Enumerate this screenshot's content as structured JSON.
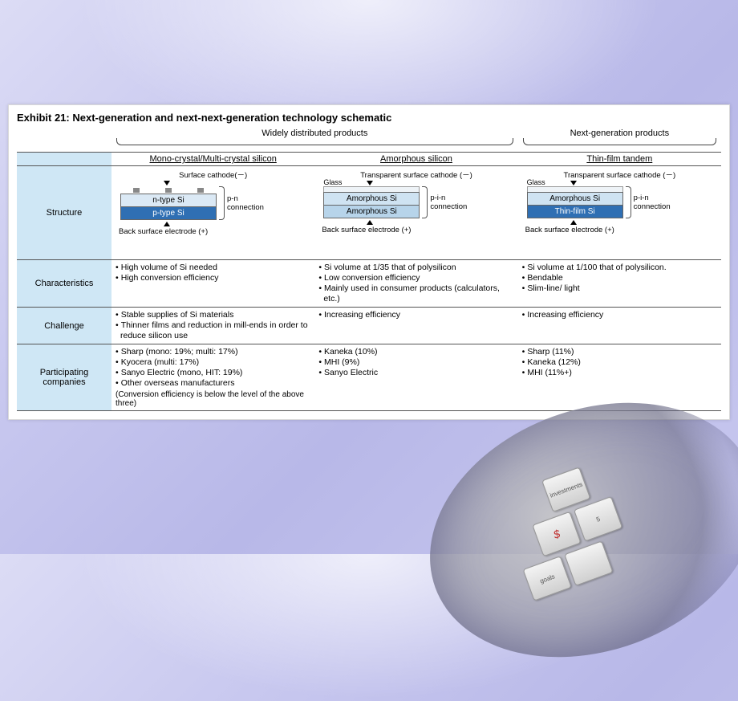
{
  "title": "Exhibit 21: Next-generation and next-next-generation technology schematic",
  "categories": {
    "wide": "Widely distributed products",
    "next": "Next-generation products"
  },
  "columns": [
    "Mono-crystal/Multi-crystal silicon",
    "Amorphous silicon",
    "Thin-film tandem"
  ],
  "row_labels": {
    "structure": "Structure",
    "characteristics": "Characteristics",
    "challenge": "Challenge",
    "participating": "Participating companies"
  },
  "structures": {
    "mono": {
      "top_label": "Surface cathode(－)",
      "layers": [
        {
          "text": "n-type Si",
          "bg": "#dbe9f5",
          "color": "#000"
        },
        {
          "text": "p-type Si",
          "bg": "#2f6fb3",
          "color": "#fff"
        }
      ],
      "has_dots": true,
      "has_glass": false,
      "connection": "p-n connection",
      "bottom_label": "Back surface electrode (+)"
    },
    "amorph": {
      "top_label": "Transparent surface cathode (－)",
      "glass": "Glass",
      "layers": [
        {
          "text": "Amorphous Si",
          "bg": "#cfe3f2",
          "color": "#000"
        },
        {
          "text": "Amorphous Si",
          "bg": "#b7d4ea",
          "color": "#000"
        }
      ],
      "has_dots": false,
      "has_glass": true,
      "connection": "p-i-n connection",
      "bottom_label": "Back surface electrode (+)"
    },
    "tandem": {
      "top_label": "Transparent surface cathode (－)",
      "glass": "Glass",
      "layers": [
        {
          "text": "Amorphous Si",
          "bg": "#cfe3f2",
          "color": "#000"
        },
        {
          "text": "Thin-film Si",
          "bg": "#2f6fb3",
          "color": "#fff"
        }
      ],
      "has_dots": false,
      "has_glass": true,
      "connection": "p-i-n connection",
      "bottom_label": "Back surface electrode (+)"
    }
  },
  "characteristics": {
    "mono": [
      "High volume of Si needed",
      "High conversion efficiency"
    ],
    "amorph": [
      "Si volume at 1/35 that of polysilicon",
      "Low conversion efficiency",
      "Mainly used in consumer products (calculators, etc.)"
    ],
    "tandem": [
      "Si volume at 1/100 that of polysilicon.",
      "Bendable",
      "Slim-line/ light"
    ]
  },
  "challenge": {
    "mono": [
      "Stable supplies of Si materials",
      "Thinner films and reduction in mill-ends in order to reduce silicon use"
    ],
    "amorph": [
      "Increasing efficiency"
    ],
    "tandem": [
      "Increasing efficiency"
    ]
  },
  "participating": {
    "mono": {
      "items": [
        "Sharp (mono: 19%; multi: 17%)",
        "Kyocera (multi: 17%)",
        "Sanyo Electric (mono, HIT: 19%)",
        "Other overseas manufacturers"
      ],
      "note": "(Conversion efficiency is below the level of  the above three)"
    },
    "amorph": {
      "items": [
        "Kaneka (10%)",
        "MHI (9%)",
        "Sanyo Electric"
      ],
      "note": ""
    },
    "tandem": {
      "items": [
        "Sharp (11%)",
        "Kaneka (12%)",
        "MHI (11%+)"
      ],
      "note": ""
    }
  },
  "style": {
    "header_bg": "#cfe7f5",
    "border_color": "#555555",
    "title_fontsize": 13,
    "body_fontsize": 10.5
  },
  "decor_keys": [
    "investments",
    "$",
    "goals",
    "5"
  ]
}
